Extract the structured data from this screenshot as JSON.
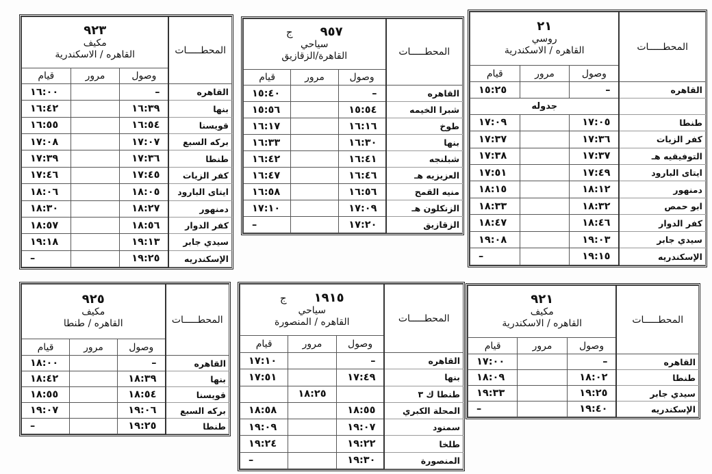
{
  "headers": {
    "stations": "المحطـــــات",
    "arrival": "وصول",
    "pass": "مرور",
    "departure": "قيام"
  },
  "timetables": [
    {
      "id": "t21",
      "number": "٢١",
      "suffix": "",
      "type": "روسي",
      "route": "القاهره / الاسكندرية",
      "rows": [
        {
          "station": "القاهره",
          "arr": "–",
          "pass": "",
          "dep": "١٥:٢٥"
        },
        {
          "station": "",
          "note": "جدوله"
        },
        {
          "station": "طنطا",
          "arr": "١٧:٠٥",
          "pass": "",
          "dep": "١٧:٠٩"
        },
        {
          "station": "كفر الزيات",
          "arr": "١٧:٣٦",
          "pass": "",
          "dep": "١٧:٣٧"
        },
        {
          "station": "التوفيقيه هـ",
          "arr": "١٧:٣٧",
          "pass": "",
          "dep": "١٧:٣٨"
        },
        {
          "station": "ايتاى البارود",
          "arr": "١٧:٤٩",
          "pass": "",
          "dep": "١٧:٥١"
        },
        {
          "station": "دمنهور",
          "arr": "١٨:١٢",
          "pass": "",
          "dep": "١٨:١٥"
        },
        {
          "station": "ابو حمص",
          "arr": "١٨:٣٢",
          "pass": "",
          "dep": "١٨:٣٣"
        },
        {
          "station": "كفر الدوار",
          "arr": "١٨:٤٦",
          "pass": "",
          "dep": "١٨:٤٧"
        },
        {
          "station": "سيدي جابر",
          "arr": "١٩:٠٣",
          "pass": "",
          "dep": "١٩:٠٨"
        },
        {
          "station": "الإسكندريه",
          "arr": "١٩:١٥",
          "pass": "",
          "dep": "–"
        }
      ]
    },
    {
      "id": "t957",
      "number": "٩٥٧",
      "suffix": "ج",
      "type": "سياحي",
      "route": "القاهرة/الزقازيق",
      "rows": [
        {
          "station": "القاهره",
          "arr": "–",
          "pass": "",
          "dep": "١٥:٤٠"
        },
        {
          "station": "شبرا الخيمه",
          "arr": "١٥:٥٤",
          "pass": "",
          "dep": "١٥:٥٦"
        },
        {
          "station": "طوخ",
          "arr": "١٦:١٦",
          "pass": "",
          "dep": "١٦:١٧"
        },
        {
          "station": "بنها",
          "arr": "١٦:٣٠",
          "pass": "",
          "dep": "١٦:٣٣"
        },
        {
          "station": "شبلنجه",
          "arr": "١٦:٤١",
          "pass": "",
          "dep": "١٦:٤٢"
        },
        {
          "station": "العزيزيه هـ",
          "arr": "١٦:٤٦",
          "pass": "",
          "dep": "١٦:٤٧"
        },
        {
          "station": "منيه القمح",
          "arr": "١٦:٥٦",
          "pass": "",
          "dep": "١٦:٥٨"
        },
        {
          "station": "الزنكلون هـ",
          "arr": "١٧:٠٩",
          "pass": "",
          "dep": "١٧:١٠"
        },
        {
          "station": "الزقازيق",
          "arr": "١٧:٢٠",
          "pass": "",
          "dep": "–"
        }
      ]
    },
    {
      "id": "t923",
      "number": "٩٢٣",
      "suffix": "",
      "type": "مكيف",
      "route": "القاهره / الاسكندرية",
      "rows": [
        {
          "station": "القاهره",
          "arr": "–",
          "pass": "",
          "dep": "١٦:٠٠"
        },
        {
          "station": "بنها",
          "arr": "١٦:٣٩",
          "pass": "",
          "dep": "١٦:٤٢"
        },
        {
          "station": "قويسنا",
          "arr": "١٦:٥٤",
          "pass": "",
          "dep": "١٦:٥٥"
        },
        {
          "station": "بركه السبع",
          "arr": "١٧:٠٧",
          "pass": "",
          "dep": "١٧:٠٨"
        },
        {
          "station": "طنطا",
          "arr": "١٧:٣٦",
          "pass": "",
          "dep": "١٧:٣٩"
        },
        {
          "station": "كفر الزيات",
          "arr": "١٧:٤٥",
          "pass": "",
          "dep": "١٧:٤٦"
        },
        {
          "station": "ايتاى البارود",
          "arr": "١٨:٠٥",
          "pass": "",
          "dep": "١٨:٠٦"
        },
        {
          "station": "دمنهور",
          "arr": "١٨:٢٧",
          "pass": "",
          "dep": "١٨:٣٠"
        },
        {
          "station": "كفر الدوار",
          "arr": "١٨:٥٦",
          "pass": "",
          "dep": "١٨:٥٧"
        },
        {
          "station": "سيدي جابر",
          "arr": "١٩:١٣",
          "pass": "",
          "dep": "١٩:١٨"
        },
        {
          "station": "الإسكندريه",
          "arr": "١٩:٢٥",
          "pass": "",
          "dep": "–"
        }
      ]
    },
    {
      "id": "t921",
      "number": "٩٢١",
      "suffix": "",
      "type": "مكيف",
      "route": "القاهره / الاسكندرية",
      "rows": [
        {
          "station": "القاهره",
          "arr": "–",
          "pass": "",
          "dep": "١٧:٠٠"
        },
        {
          "station": "طنطا",
          "arr": "١٨:٠٢",
          "pass": "",
          "dep": "١٨:٠٩"
        },
        {
          "station": "سيدي جابر",
          "arr": "١٩:٢٥",
          "pass": "",
          "dep": "١٩:٣٣"
        },
        {
          "station": "الإسكندريه",
          "arr": "١٩:٤٠",
          "pass": "",
          "dep": "–"
        }
      ]
    },
    {
      "id": "t1915",
      "number": "١٩١٥",
      "suffix": "ج",
      "type": "سياحي",
      "route": "القاهره / المنصورة",
      "rows": [
        {
          "station": "القاهره",
          "arr": "–",
          "pass": "",
          "dep": "١٧:١٠"
        },
        {
          "station": "بنها",
          "arr": "١٧:٤٩",
          "pass": "",
          "dep": "١٧:٥١"
        },
        {
          "station": "طنطا ك ٣",
          "arr": "",
          "pass": "١٨:٢٥",
          "dep": ""
        },
        {
          "station": "المحلة الكبري",
          "arr": "١٨:٥٥",
          "pass": "",
          "dep": "١٨:٥٨"
        },
        {
          "station": "سمنود",
          "arr": "١٩:٠٧",
          "pass": "",
          "dep": "١٩:٠٩"
        },
        {
          "station": "طلخا",
          "arr": "١٩:٢٢",
          "pass": "",
          "dep": "١٩:٢٤"
        },
        {
          "station": "المنصورة",
          "arr": "١٩:٣٠",
          "pass": "",
          "dep": "–"
        }
      ]
    },
    {
      "id": "t925",
      "number": "٩٢٥",
      "suffix": "",
      "type": "مكيف",
      "route": "القاهره / طنطا",
      "rows": [
        {
          "station": "القاهره",
          "arr": "–",
          "pass": "",
          "dep": "١٨:٠٠"
        },
        {
          "station": "بنها",
          "arr": "١٨:٣٩",
          "pass": "",
          "dep": "١٨:٤٢"
        },
        {
          "station": "قويسنا",
          "arr": "١٨:٥٤",
          "pass": "",
          "dep": "١٨:٥٥"
        },
        {
          "station": "بركه السبع",
          "arr": "١٩:٠٦",
          "pass": "",
          "dep": "١٩:٠٧"
        },
        {
          "station": "طنطا",
          "arr": "١٩:٢٥",
          "pass": "",
          "dep": "–"
        }
      ]
    }
  ]
}
